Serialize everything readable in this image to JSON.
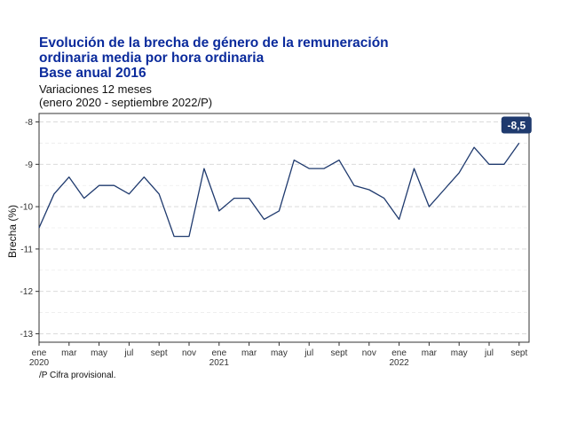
{
  "chart_data": {
    "type": "line",
    "title_lines": [
      "Evolución de la brecha de género de la remuneración",
      "ordinaria media por hora ordinaria",
      "Base anual 2016"
    ],
    "subtitle_lines": [
      "Variaciones 12 meses",
      "(enero 2020 - septiembre 2022/P)"
    ],
    "ylabel": "Brecha (%)",
    "xlabel": "",
    "ylim": [
      -13.2,
      -7.8
    ],
    "yticks": [
      -8,
      -9,
      -10,
      -11,
      -12,
      -13
    ],
    "ytick_labels": [
      "-8",
      "-9",
      "-10",
      "-11",
      "-12",
      "-13"
    ],
    "grid": true,
    "legend": "none",
    "line_color": "#1f3a6e",
    "x_tick_labels": [
      {
        "i": 0,
        "line1": "ene",
        "line2": "2020"
      },
      {
        "i": 2,
        "line1": "mar",
        "line2": ""
      },
      {
        "i": 4,
        "line1": "may",
        "line2": ""
      },
      {
        "i": 6,
        "line1": "jul",
        "line2": ""
      },
      {
        "i": 8,
        "line1": "sept",
        "line2": ""
      },
      {
        "i": 10,
        "line1": "nov",
        "line2": ""
      },
      {
        "i": 12,
        "line1": "ene",
        "line2": "2021"
      },
      {
        "i": 14,
        "line1": "mar",
        "line2": ""
      },
      {
        "i": 16,
        "line1": "may",
        "line2": ""
      },
      {
        "i": 18,
        "line1": "jul",
        "line2": ""
      },
      {
        "i": 20,
        "line1": "sept",
        "line2": ""
      },
      {
        "i": 22,
        "line1": "nov",
        "line2": ""
      },
      {
        "i": 24,
        "line1": "ene",
        "line2": "2022"
      },
      {
        "i": 26,
        "line1": "mar",
        "line2": ""
      },
      {
        "i": 28,
        "line1": "may",
        "line2": ""
      },
      {
        "i": 30,
        "line1": "jul",
        "line2": ""
      },
      {
        "i": 32,
        "line1": "sept",
        "line2": ""
      }
    ],
    "series": [
      {
        "values": [
          -10.5,
          -9.7,
          -9.3,
          -9.8,
          -9.5,
          -9.5,
          -9.7,
          -9.3,
          -9.7,
          -10.7,
          -10.7,
          -9.1,
          -10.1,
          -9.8,
          -9.8,
          -10.3,
          -10.1,
          -8.9,
          -9.1,
          -9.1,
          -8.9,
          -9.5,
          -9.6,
          -9.8,
          -10.3,
          -9.1,
          -10.0,
          -9.6,
          -9.2,
          -8.6,
          -9.0,
          -9.0,
          -8.5
        ]
      }
    ],
    "end_label": "-8,5",
    "end_label_color": "#1f3a6e"
  },
  "footnote": "/P Cifra provisional."
}
